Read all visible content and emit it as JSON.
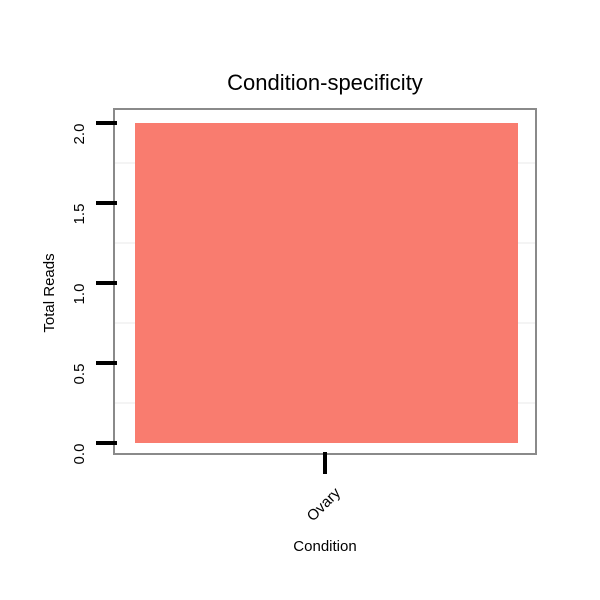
{
  "chart_data": {
    "type": "bar",
    "title": "Condition-specificity",
    "xlabel": "Condition",
    "ylabel": "Total Reads",
    "categories": [
      "Ovary"
    ],
    "values": [
      2
    ],
    "ylim": [
      -0.08,
      2.08
    ],
    "yticks": [
      {
        "value": 0.0,
        "label": "0.0"
      },
      {
        "value": 0.5,
        "label": "0.5"
      },
      {
        "value": 1.0,
        "label": "1.0"
      },
      {
        "value": 1.5,
        "label": "1.5"
      },
      {
        "value": 2.0,
        "label": "2.0"
      }
    ],
    "minor_gridlines": [
      0.25,
      0.75,
      1.25,
      1.75
    ],
    "grid": "minor horizontal only",
    "legend": "none",
    "colors": {
      "bar": "#F97C6F",
      "plot_border": "#8A8A8A",
      "gridline": "#F4F4F4",
      "axis_text": "#000000"
    }
  }
}
